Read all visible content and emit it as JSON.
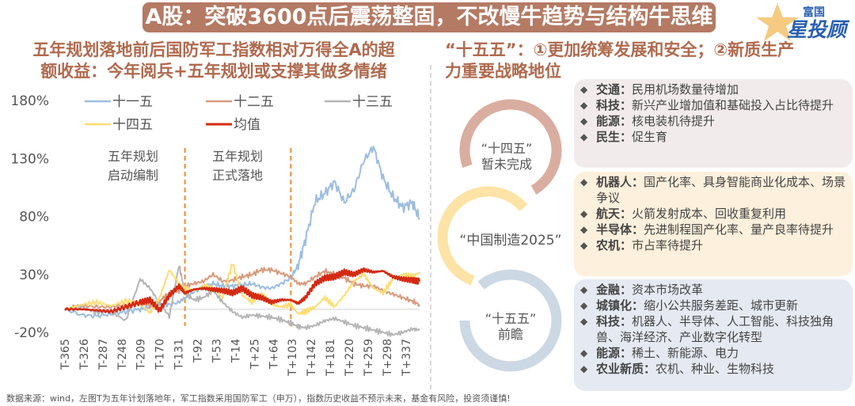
{
  "header": {
    "title": "A股：突破3600点后震荡整固，不改慢牛趋势与结构牛思维",
    "logo_small": "富国",
    "logo_big": "星投顾"
  },
  "left": {
    "heading_line1": "五年规划落地前后国防军工指数相对万得全A的超",
    "heading_line2": "额收益：今年阅兵+五年规划或支撑其做多情绪"
  },
  "right": {
    "heading_line1": "“十五五”：①更加统筹发展和安全；②新质生产",
    "heading_line2": "力重要战略地位",
    "circles": [
      {
        "line1": "“十四五”",
        "line2": "暂未完成",
        "color": "#d9aea0"
      },
      {
        "line1": "“中国制造2025”",
        "line2": "",
        "color": "#fde3a6"
      },
      {
        "line1": "“十五五”",
        "line2": "前瞻",
        "color": "#ccd8e4"
      }
    ],
    "panels": [
      {
        "bg": "#f1eceb",
        "items": [
          {
            "key": "交通",
            "text": "民用机场数量待增加"
          },
          {
            "key": "科技",
            "text": "新兴产业增加值和基础投入占比待提升"
          },
          {
            "key": "能源",
            "text": "核电装机待提升"
          },
          {
            "key": "民生",
            "text": "促生育"
          }
        ]
      },
      {
        "bg": "#fdf0dc",
        "items": [
          {
            "key": "机器人",
            "text": "国产化率、具身智能商业化成本、场景争议"
          },
          {
            "key": "航天",
            "text": "火箭发射成本、回收重复利用"
          },
          {
            "key": "半导体",
            "text": "先进制程国产化率、量产良率待提升"
          },
          {
            "key": "农机",
            "text": "市占率待提升"
          }
        ]
      },
      {
        "bg": "#e5eaf2",
        "items": [
          {
            "key": "金融",
            "text": "资本市场改革"
          },
          {
            "key": "城镇化",
            "text": "缩小公共服务差距、城市更新"
          },
          {
            "key": "科技",
            "text": "机器人、半导体、人工智能、科技独角兽、海洋经济、产业数字化转型"
          },
          {
            "key": "能源",
            "text": "稀土、新能源、电力"
          },
          {
            "key": "农业新质",
            "text": "农机、种业、生物科技"
          }
        ]
      }
    ]
  },
  "footer": {
    "source": "数据来源：wind，左图T为五年计划落地年，军工指数采用国防军工（申万），指数历史收益不预示未来，基金有风险，投资须谨慎!"
  },
  "chart_data": {
    "type": "line",
    "title": "",
    "xlabel": "",
    "ylabel": "",
    "ylim": [
      -20,
      180
    ],
    "yticks": [
      "180%",
      "130%",
      "80%",
      "30%",
      "-20%"
    ],
    "ytick_values": [
      180,
      130,
      80,
      30,
      -20
    ],
    "xticks": [
      "T-365",
      "T-326",
      "T-287",
      "T-248",
      "T-209",
      "T-170",
      "T-131",
      "T-92",
      "T-53",
      "T-14",
      "T+25",
      "T+64",
      "T+103",
      "T+142",
      "T+181",
      "T+220",
      "T+259",
      "T+298",
      "T+337"
    ],
    "xrange": [
      -365,
      365
    ],
    "vlines": [
      -118,
      100
    ],
    "annotations": [
      {
        "line1": "五年规划",
        "line2": "启动编制",
        "region": "before-first-vline"
      },
      {
        "line1": "五年规划",
        "line2": "正式落地",
        "region": "between-vlines"
      }
    ],
    "legend_position": "top",
    "x": [
      -365,
      -330,
      -300,
      -270,
      -240,
      -210,
      -190,
      -170,
      -150,
      -130,
      -118,
      -100,
      -80,
      -60,
      -40,
      -20,
      0,
      20,
      40,
      60,
      80,
      100,
      115,
      130,
      150,
      170,
      190,
      210,
      230,
      250,
      270,
      290,
      310,
      330,
      350,
      365
    ],
    "series": [
      {
        "name": "十一五",
        "color": "#9dbde0",
        "values": [
          0,
          -5,
          -6,
          -4,
          -2,
          0,
          2,
          4,
          4,
          6,
          10,
          15,
          19,
          22,
          20,
          20,
          21,
          22,
          19,
          18,
          22,
          27,
          38,
          60,
          93,
          100,
          110,
          92,
          103,
          128,
          140,
          113,
          97,
          88,
          92,
          78
        ]
      },
      {
        "name": "十二五",
        "color": "#d99a7c",
        "values": [
          0,
          3,
          2,
          2,
          4,
          6,
          3,
          7,
          14,
          16,
          20,
          22,
          24,
          30,
          24,
          25,
          28,
          30,
          34,
          34,
          31,
          28,
          22,
          22,
          28,
          33,
          30,
          27,
          22,
          20,
          20,
          16,
          13,
          10,
          7,
          4
        ]
      },
      {
        "name": "十三五",
        "color": "#b5b5b5",
        "values": [
          0,
          2,
          -3,
          -2,
          -10,
          26,
          18,
          5,
          -6,
          38,
          14,
          8,
          10,
          16,
          6,
          -2,
          -7,
          -5,
          -6,
          -7,
          -9,
          -12,
          -15,
          -16,
          -14,
          -10,
          -8,
          -11,
          -14,
          -16,
          -18,
          -20,
          -22,
          -20,
          -17,
          -18
        ]
      },
      {
        "name": "十四五",
        "color": "#fddc72",
        "values": [
          0,
          4,
          6,
          3,
          7,
          4,
          -3,
          10,
          34,
          22,
          18,
          16,
          20,
          18,
          10,
          40,
          12,
          6,
          14,
          4,
          2,
          4,
          -4,
          -2,
          2,
          10,
          2,
          12,
          24,
          30,
          18,
          14,
          26,
          30,
          28,
          32
        ]
      },
      {
        "name": "均值",
        "color": "#d42a12",
        "values": [
          0,
          0,
          -1,
          -2,
          2,
          6,
          8,
          -1,
          12,
          20,
          14,
          17,
          18,
          17,
          16,
          14,
          18,
          12,
          10,
          6,
          8,
          8,
          5,
          10,
          22,
          27,
          28,
          32,
          30,
          34,
          32,
          33,
          28,
          26,
          25,
          24
        ]
      }
    ]
  }
}
